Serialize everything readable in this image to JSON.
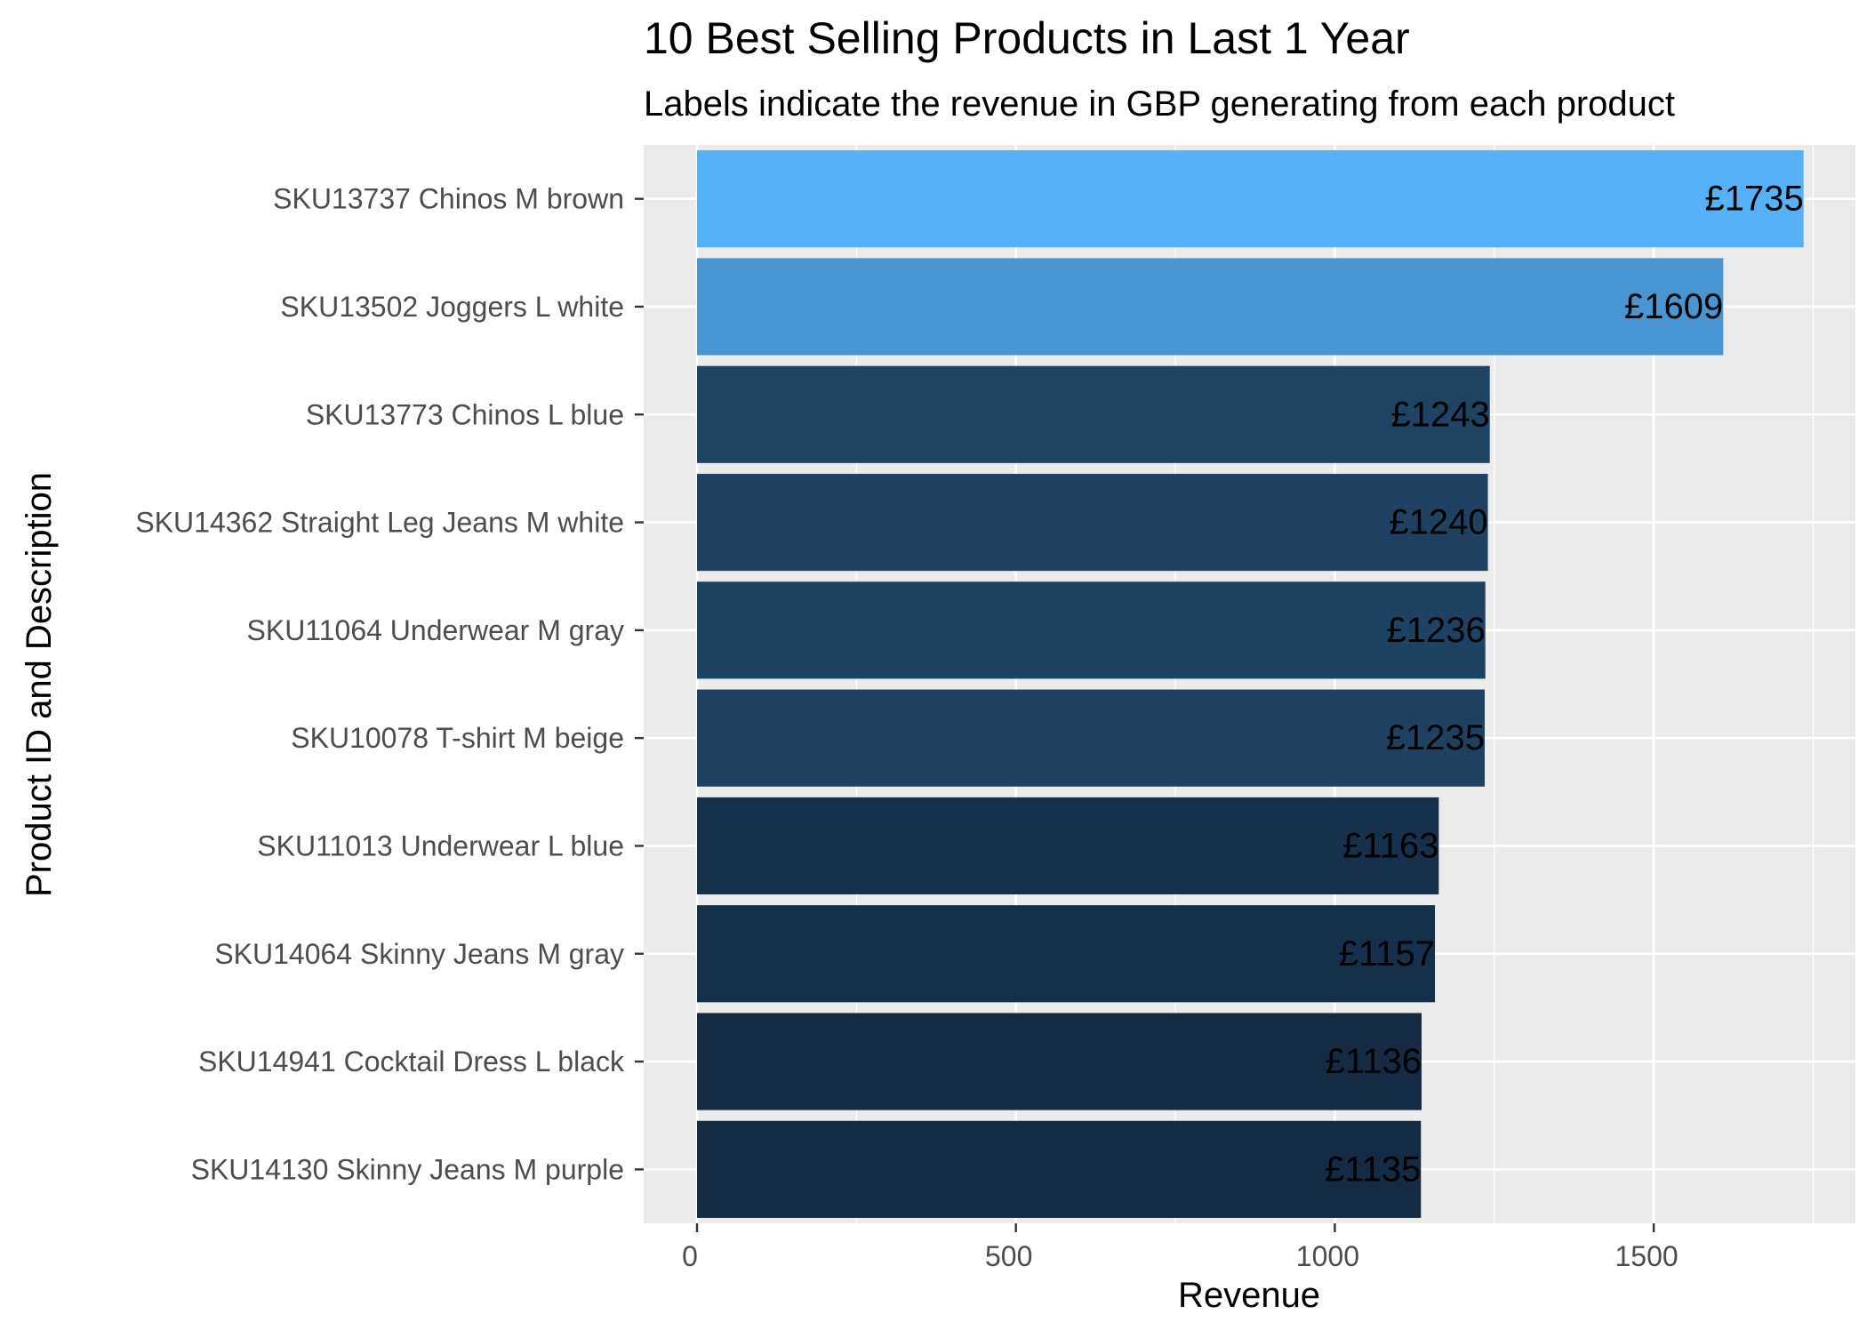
{
  "chart_data": {
    "type": "bar",
    "orientation": "horizontal",
    "title": "10 Best Selling Products in Last 1 Year",
    "subtitle": "Labels indicate the revenue in GBP generating from each product",
    "xlabel": "Revenue",
    "ylabel": "Product ID and Description",
    "xlim": [
      0,
      1800
    ],
    "x_ticks": [
      "0",
      "500",
      "1000",
      "1500"
    ],
    "grid": true,
    "legend": "none",
    "categories": [
      "SKU13737 Chinos M brown",
      "SKU13502 Joggers L white",
      "SKU13773 Chinos L blue",
      "SKU14362 Straight Leg Jeans M white",
      "SKU11064 Underwear M gray",
      "SKU10078 T-shirt M beige",
      "SKU11013 Underwear L blue",
      "SKU14064 Skinny Jeans M gray",
      "SKU14941 Cocktail Dress L black",
      "SKU14130 Skinny Jeans M purple"
    ],
    "values": [
      1735,
      1609,
      1243,
      1240,
      1236,
      1235,
      1163,
      1157,
      1136,
      1135
    ],
    "labels": [
      "£1735",
      "£1609",
      "£1243",
      "£1240",
      "£1236",
      "£1235",
      "£1163",
      "£1157",
      "£1136",
      "£1135"
    ],
    "colors": {
      "panel_background": "#ebebeb",
      "gridline": "#ffffff",
      "fill_low": "#132b43",
      "fill_high": "#56b1f7"
    }
  }
}
